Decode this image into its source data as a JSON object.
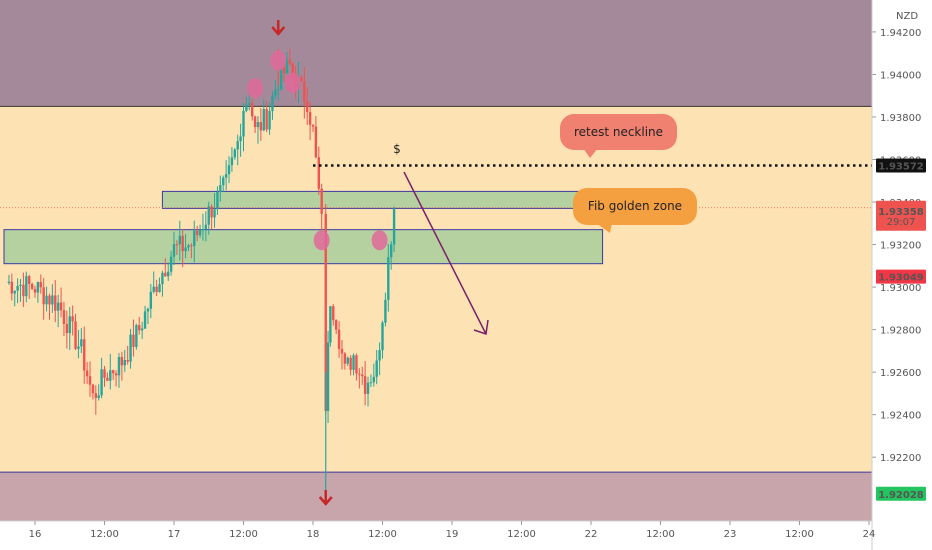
{
  "chart_data": {
    "type": "candlestick",
    "currency": "NZD",
    "ylim": [
      1.919,
      1.9435
    ],
    "y_ticks": [
      "1.94200",
      "1.94000",
      "1.93800",
      "1.93600",
      "1.93400",
      "1.93200",
      "1.93000",
      "1.92800",
      "1.92600",
      "1.92400",
      "1.92200"
    ],
    "y_tick_values": [
      1.942,
      1.94,
      1.938,
      1.936,
      1.934,
      1.932,
      1.93,
      1.928,
      1.926,
      1.924,
      1.922
    ],
    "x_ticks": [
      "16",
      "12:00",
      "17",
      "12:00",
      "18",
      "12:00",
      "19",
      "12:00",
      "22",
      "12:00",
      "23",
      "12:00",
      "24"
    ],
    "x_tick_hours": [
      0,
      12,
      24,
      36,
      48,
      60,
      72,
      84,
      96,
      108,
      120,
      132,
      144
    ],
    "price_labels": [
      {
        "text": "1.93572",
        "value": 1.93572,
        "bg": "#111111",
        "color": "#ffffff"
      },
      {
        "text": "1.93373",
        "sub": "29:07",
        "value": 1.93373,
        "bg": "#ef5350",
        "color": "#ffffff"
      },
      {
        "text": "1.93358",
        "value": 1.93358,
        "bg": "#ef5350",
        "color": "#ffffff"
      },
      {
        "text": "1.93049",
        "value": 1.93049,
        "bg": "#f23645",
        "color": "#ffffff"
      },
      {
        "text": "1.92028",
        "value": 1.92028,
        "bg": "#22c55e",
        "color": "#111111"
      }
    ],
    "annotations": [
      {
        "text": "retest neckline",
        "bg": "#f08070"
      },
      {
        "text": "Fib golden zone",
        "bg": "#f5a040"
      },
      {
        "text": "$",
        "bg": ""
      }
    ],
    "zones": [
      {
        "name": "resistance-zone",
        "y_from": 1.9385,
        "y_to": 1.9435,
        "color": "#a4899a"
      },
      {
        "name": "support-zone",
        "y_from": 1.919,
        "y_to": 1.9213,
        "color": "#c7a5ab"
      },
      {
        "name": "retest-neckline-box",
        "hour_from": 22,
        "hour_to": 94,
        "y_from": 1.9337,
        "y_to": 1.9345,
        "color": "#9ecb9a"
      },
      {
        "name": "fib-golden-zone-box",
        "hour_from": -22,
        "hour_to": 98,
        "y_from": 1.9311,
        "y_to": 1.9327,
        "color": "#9ecb9a"
      }
    ],
    "neckline": 1.93572,
    "colors": {
      "background": "#fde3b4",
      "up": "#26a69a",
      "down": "#ef5350",
      "marker": "#e06a9a",
      "arrow_down": "#c62828",
      "projection": "#7b1f6a"
    },
    "candles": []
  }
}
